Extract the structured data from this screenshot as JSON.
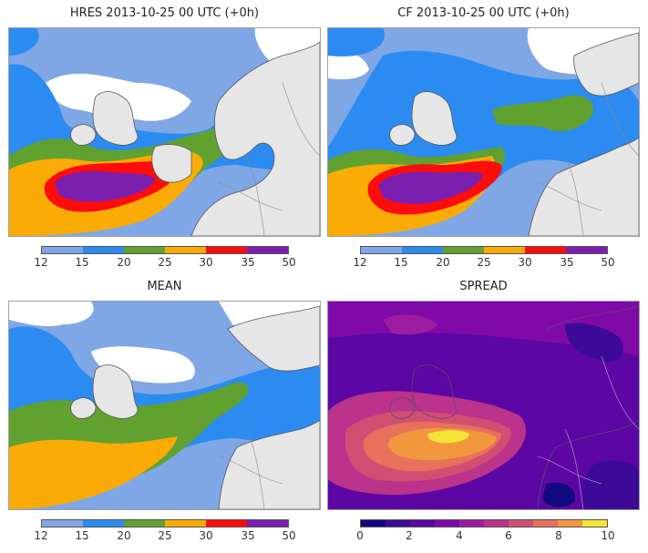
{
  "panels": [
    {
      "title": "HRES 2013-10-25 00 UTC (+0h)",
      "scale": "wind"
    },
    {
      "title": "CF 2013-10-25 00 UTC (+0h)",
      "scale": "wind"
    },
    {
      "title": "MEAN",
      "scale": "wind"
    },
    {
      "title": "SPREAD",
      "scale": "spread"
    }
  ],
  "colorbars": {
    "wind": {
      "ticks": [
        "12",
        "15",
        "20",
        "25",
        "30",
        "35",
        "50"
      ],
      "colors": [
        "#7fa7e6",
        "#2b8bf0",
        "#61a130",
        "#fbab05",
        "#ff0c0c",
        "#7b1fb0"
      ]
    },
    "spread": {
      "ticks": [
        "0",
        "2",
        "4",
        "6",
        "8",
        "10"
      ],
      "colors": [
        "#12087f",
        "#3c0a96",
        "#5c06a4",
        "#800aa8",
        "#9e1ca0",
        "#bb338a",
        "#d24f74",
        "#e7715a",
        "#f3973f",
        "#f4e437"
      ]
    }
  },
  "map_colors": {
    "land": "#e6e6e6",
    "coast": "#555555",
    "borders": "#8a8a8a"
  }
}
